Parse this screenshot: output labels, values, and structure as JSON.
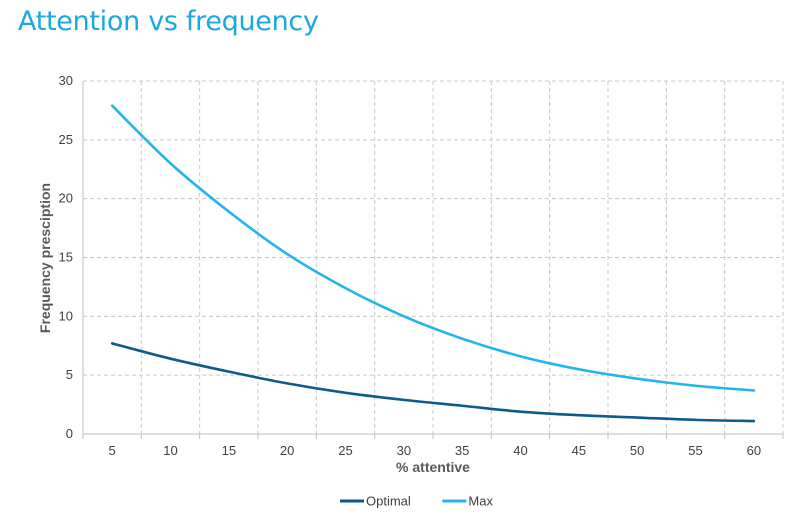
{
  "chart_data": {
    "type": "line",
    "title": "Attention vs frequency",
    "xlabel": "% attentive",
    "ylabel": "Frequency presciption",
    "x": [
      5,
      10,
      15,
      20,
      25,
      30,
      35,
      40,
      45,
      50,
      55,
      60
    ],
    "xticks": [
      "5",
      "10",
      "15",
      "20",
      "25",
      "30",
      "35",
      "40",
      "45",
      "50",
      "55",
      "60"
    ],
    "yticks": [
      "0",
      "5",
      "10",
      "15",
      "20",
      "25",
      "30"
    ],
    "ylim": [
      0,
      30
    ],
    "grid": true,
    "legend_position": "bottom",
    "series": [
      {
        "name": "Optimal",
        "color": "#0e5a8a",
        "values": [
          7.7,
          6.4,
          5.3,
          4.3,
          3.5,
          2.9,
          2.4,
          1.9,
          1.6,
          1.4,
          1.2,
          1.1
        ]
      },
      {
        "name": "Max",
        "color": "#22b4ea",
        "values": [
          27.9,
          23.0,
          18.9,
          15.3,
          12.4,
          10.0,
          8.1,
          6.6,
          5.5,
          4.7,
          4.1,
          3.7
        ]
      }
    ]
  }
}
